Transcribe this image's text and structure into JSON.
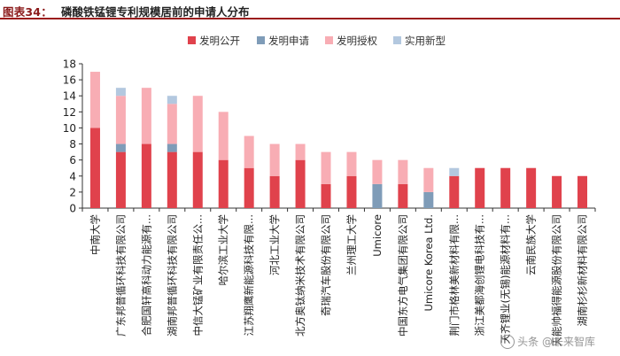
{
  "header": {
    "figure_label": "图表34：",
    "title": "磷酸铁锰锂专利规模居前的申请人分布"
  },
  "watermark": "头条 @未来智库",
  "colors": {
    "发明公开": "#e0424c",
    "发明申请": "#7f9cb8",
    "发明授权": "#f8adb4",
    "实用新型": "#b3c8df"
  },
  "chart_data": {
    "type": "bar",
    "stacked": true,
    "categories": [
      "中南大学",
      "广东邦普循环科技有限公司",
      "合肥国轩高科动力能源有...",
      "湖南邦普循环科技有限公司",
      "中信大锰矿业有限责任公...",
      "哈尔滨工业大学",
      "江苏翔鹰新能源科技有限...",
      "河北工业大学",
      "北方奥钛纳米技术有限公司",
      "奇瑞汽车股份有限公司",
      "兰州理工大学",
      "Umicore",
      "中国东方电气集团有限公司",
      "Umicore Korea Ltd.",
      "荆门市格林美新材料有限...",
      "浙江美都海创锂电科技有...",
      "天齐锂业(无锡)能源材料有...",
      "云南民族大学",
      "天能帅福得能源股份有限公司",
      "湖南杉杉新材料有限公司"
    ],
    "series": [
      {
        "name": "发明公开",
        "values": [
          10,
          7,
          8,
          7,
          7,
          6,
          5,
          4,
          6,
          3,
          4,
          0,
          3,
          0,
          4,
          5,
          5,
          5,
          4,
          4
        ]
      },
      {
        "name": "发明申请",
        "values": [
          0,
          1,
          0,
          1,
          0,
          0,
          0,
          0,
          0,
          0,
          0,
          3,
          0,
          2,
          0,
          0,
          0,
          0,
          0,
          0
        ]
      },
      {
        "name": "发明授权",
        "values": [
          7,
          6,
          7,
          5,
          7,
          6,
          4,
          4,
          2,
          4,
          3,
          3,
          3,
          3,
          0,
          0,
          0,
          0,
          0,
          0
        ]
      },
      {
        "name": "实用新型",
        "values": [
          0,
          1,
          0,
          1,
          0,
          0,
          0,
          0,
          0,
          0,
          0,
          0,
          0,
          0,
          1,
          0,
          0,
          0,
          0,
          0
        ]
      }
    ],
    "ylim": [
      0,
      18
    ],
    "yticks": [
      0,
      2,
      4,
      6,
      8,
      10,
      12,
      14,
      16,
      18
    ],
    "grid": false,
    "legend_position": "top"
  }
}
